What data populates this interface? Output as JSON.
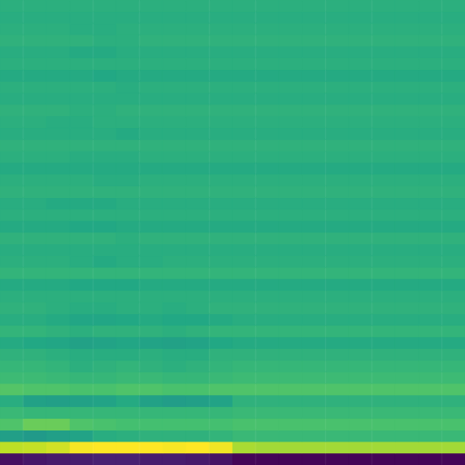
{
  "chart_data": {
    "type": "heatmap",
    "tick_labels": false,
    "zlim": [
      0,
      1
    ],
    "cells": [
      [
        0.63,
        0.63,
        0.63,
        0.63,
        0.63,
        0.63,
        0.63,
        0.63,
        0.63,
        0.63,
        0.63,
        0.63,
        0.63,
        0.63,
        0.63,
        0.63,
        0.63,
        0.63,
        0.63,
        0.63
      ],
      [
        0.62,
        0.62,
        0.62,
        0.62,
        0.62,
        0.62,
        0.62,
        0.62,
        0.62,
        0.62,
        0.62,
        0.62,
        0.62,
        0.62,
        0.62,
        0.62,
        0.62,
        0.62,
        0.62,
        0.62
      ],
      [
        0.63,
        0.63,
        0.63,
        0.62,
        0.62,
        0.63,
        0.63,
        0.63,
        0.63,
        0.63,
        0.63,
        0.63,
        0.63,
        0.63,
        0.63,
        0.63,
        0.63,
        0.63,
        0.63,
        0.63
      ],
      [
        0.64,
        0.64,
        0.64,
        0.64,
        0.63,
        0.63,
        0.64,
        0.64,
        0.64,
        0.64,
        0.64,
        0.64,
        0.64,
        0.64,
        0.64,
        0.64,
        0.64,
        0.64,
        0.64,
        0.64
      ],
      [
        0.62,
        0.62,
        0.62,
        0.61,
        0.61,
        0.62,
        0.62,
        0.62,
        0.62,
        0.62,
        0.62,
        0.62,
        0.62,
        0.62,
        0.62,
        0.62,
        0.62,
        0.62,
        0.62,
        0.62
      ],
      [
        0.63,
        0.63,
        0.63,
        0.63,
        0.63,
        0.63,
        0.63,
        0.63,
        0.63,
        0.63,
        0.63,
        0.63,
        0.63,
        0.63,
        0.63,
        0.63,
        0.63,
        0.63,
        0.63,
        0.63
      ],
      [
        0.61,
        0.61,
        0.61,
        0.61,
        0.6,
        0.61,
        0.61,
        0.61,
        0.61,
        0.61,
        0.61,
        0.61,
        0.61,
        0.61,
        0.61,
        0.61,
        0.61,
        0.61,
        0.61,
        0.61
      ],
      [
        0.63,
        0.63,
        0.63,
        0.63,
        0.63,
        0.62,
        0.63,
        0.63,
        0.63,
        0.63,
        0.63,
        0.63,
        0.63,
        0.63,
        0.63,
        0.63,
        0.63,
        0.63,
        0.63,
        0.63
      ],
      [
        0.62,
        0.62,
        0.62,
        0.62,
        0.62,
        0.62,
        0.62,
        0.62,
        0.62,
        0.62,
        0.62,
        0.62,
        0.62,
        0.62,
        0.62,
        0.62,
        0.62,
        0.62,
        0.62,
        0.62
      ],
      [
        0.64,
        0.64,
        0.64,
        0.63,
        0.63,
        0.64,
        0.64,
        0.64,
        0.64,
        0.64,
        0.64,
        0.64,
        0.64,
        0.64,
        0.64,
        0.64,
        0.64,
        0.64,
        0.64,
        0.64
      ],
      [
        0.63,
        0.63,
        0.62,
        0.62,
        0.63,
        0.63,
        0.63,
        0.63,
        0.63,
        0.63,
        0.63,
        0.63,
        0.63,
        0.63,
        0.63,
        0.63,
        0.63,
        0.63,
        0.63,
        0.63
      ],
      [
        0.62,
        0.62,
        0.62,
        0.62,
        0.62,
        0.61,
        0.62,
        0.62,
        0.62,
        0.62,
        0.62,
        0.62,
        0.62,
        0.62,
        0.62,
        0.62,
        0.62,
        0.62,
        0.62,
        0.62
      ],
      [
        0.64,
        0.64,
        0.64,
        0.64,
        0.64,
        0.64,
        0.64,
        0.64,
        0.64,
        0.64,
        0.64,
        0.64,
        0.64,
        0.64,
        0.64,
        0.64,
        0.64,
        0.64,
        0.64,
        0.64
      ],
      [
        0.63,
        0.63,
        0.63,
        0.62,
        0.62,
        0.62,
        0.63,
        0.63,
        0.63,
        0.63,
        0.63,
        0.63,
        0.63,
        0.63,
        0.63,
        0.63,
        0.63,
        0.63,
        0.63,
        0.63
      ],
      [
        0.61,
        0.61,
        0.61,
        0.61,
        0.61,
        0.61,
        0.61,
        0.61,
        0.61,
        0.61,
        0.61,
        0.61,
        0.61,
        0.61,
        0.61,
        0.61,
        0.61,
        0.61,
        0.61,
        0.61
      ],
      [
        0.63,
        0.63,
        0.63,
        0.63,
        0.62,
        0.62,
        0.63,
        0.63,
        0.63,
        0.63,
        0.63,
        0.63,
        0.63,
        0.63,
        0.63,
        0.63,
        0.63,
        0.63,
        0.63,
        0.63
      ],
      [
        0.64,
        0.64,
        0.64,
        0.64,
        0.64,
        0.64,
        0.64,
        0.64,
        0.64,
        0.64,
        0.64,
        0.64,
        0.64,
        0.64,
        0.64,
        0.64,
        0.64,
        0.64,
        0.64,
        0.64
      ],
      [
        0.62,
        0.62,
        0.61,
        0.61,
        0.61,
        0.62,
        0.62,
        0.62,
        0.62,
        0.62,
        0.62,
        0.62,
        0.62,
        0.62,
        0.62,
        0.62,
        0.62,
        0.62,
        0.62,
        0.62
      ],
      [
        0.63,
        0.63,
        0.63,
        0.63,
        0.63,
        0.63,
        0.63,
        0.63,
        0.63,
        0.63,
        0.63,
        0.63,
        0.63,
        0.63,
        0.63,
        0.63,
        0.63,
        0.63,
        0.63,
        0.63
      ],
      [
        0.61,
        0.61,
        0.61,
        0.6,
        0.6,
        0.61,
        0.61,
        0.61,
        0.61,
        0.61,
        0.61,
        0.61,
        0.61,
        0.61,
        0.61,
        0.61,
        0.61,
        0.61,
        0.61,
        0.61
      ],
      [
        0.64,
        0.64,
        0.64,
        0.64,
        0.64,
        0.63,
        0.64,
        0.64,
        0.64,
        0.64,
        0.64,
        0.64,
        0.64,
        0.64,
        0.64,
        0.64,
        0.64,
        0.64,
        0.64,
        0.64
      ],
      [
        0.62,
        0.62,
        0.62,
        0.62,
        0.62,
        0.62,
        0.62,
        0.62,
        0.62,
        0.62,
        0.62,
        0.62,
        0.62,
        0.62,
        0.62,
        0.62,
        0.62,
        0.62,
        0.62,
        0.62
      ],
      [
        0.63,
        0.63,
        0.63,
        0.62,
        0.61,
        0.62,
        0.62,
        0.63,
        0.63,
        0.63,
        0.63,
        0.63,
        0.63,
        0.63,
        0.63,
        0.63,
        0.63,
        0.63,
        0.63,
        0.63
      ],
      [
        0.65,
        0.65,
        0.65,
        0.65,
        0.65,
        0.65,
        0.65,
        0.65,
        0.65,
        0.65,
        0.65,
        0.65,
        0.65,
        0.65,
        0.65,
        0.65,
        0.65,
        0.65,
        0.65,
        0.65
      ],
      [
        0.61,
        0.61,
        0.61,
        0.6,
        0.6,
        0.6,
        0.61,
        0.61,
        0.61,
        0.61,
        0.61,
        0.61,
        0.61,
        0.61,
        0.61,
        0.61,
        0.61,
        0.61,
        0.61,
        0.61
      ],
      [
        0.63,
        0.63,
        0.63,
        0.63,
        0.63,
        0.63,
        0.63,
        0.63,
        0.63,
        0.63,
        0.63,
        0.63,
        0.63,
        0.63,
        0.63,
        0.63,
        0.63,
        0.63,
        0.63,
        0.63
      ],
      [
        0.64,
        0.64,
        0.63,
        0.62,
        0.62,
        0.63,
        0.63,
        0.62,
        0.63,
        0.64,
        0.64,
        0.64,
        0.64,
        0.64,
        0.64,
        0.64,
        0.64,
        0.64,
        0.64,
        0.64
      ],
      [
        0.62,
        0.62,
        0.61,
        0.59,
        0.59,
        0.6,
        0.61,
        0.6,
        0.6,
        0.61,
        0.62,
        0.62,
        0.62,
        0.62,
        0.62,
        0.62,
        0.62,
        0.62,
        0.62,
        0.62
      ],
      [
        0.65,
        0.65,
        0.64,
        0.63,
        0.64,
        0.64,
        0.64,
        0.63,
        0.64,
        0.65,
        0.65,
        0.65,
        0.65,
        0.65,
        0.65,
        0.65,
        0.65,
        0.65,
        0.65,
        0.65
      ],
      [
        0.61,
        0.6,
        0.59,
        0.57,
        0.58,
        0.59,
        0.58,
        0.57,
        0.58,
        0.6,
        0.61,
        0.61,
        0.61,
        0.61,
        0.61,
        0.61,
        0.61,
        0.61,
        0.61,
        0.61
      ],
      [
        0.64,
        0.64,
        0.63,
        0.62,
        0.62,
        0.62,
        0.63,
        0.62,
        0.62,
        0.64,
        0.64,
        0.64,
        0.64,
        0.64,
        0.64,
        0.64,
        0.64,
        0.64,
        0.64,
        0.64
      ],
      [
        0.66,
        0.66,
        0.65,
        0.63,
        0.64,
        0.65,
        0.64,
        0.63,
        0.64,
        0.65,
        0.66,
        0.66,
        0.66,
        0.66,
        0.66,
        0.66,
        0.66,
        0.66,
        0.66,
        0.66
      ],
      [
        0.68,
        0.68,
        0.67,
        0.66,
        0.66,
        0.67,
        0.67,
        0.66,
        0.66,
        0.67,
        0.68,
        0.68,
        0.68,
        0.68,
        0.68,
        0.68,
        0.68,
        0.68,
        0.68,
        0.68
      ],
      [
        0.73,
        0.72,
        0.72,
        0.71,
        0.71,
        0.72,
        0.72,
        0.71,
        0.71,
        0.72,
        0.72,
        0.72,
        0.72,
        0.72,
        0.72,
        0.72,
        0.72,
        0.72,
        0.72,
        0.72
      ],
      [
        0.62,
        0.57,
        0.56,
        0.57,
        0.58,
        0.61,
        0.57,
        0.55,
        0.56,
        0.58,
        0.64,
        0.64,
        0.64,
        0.64,
        0.64,
        0.64,
        0.64,
        0.64,
        0.64,
        0.64
      ],
      [
        0.67,
        0.66,
        0.66,
        0.66,
        0.66,
        0.66,
        0.66,
        0.66,
        0.66,
        0.66,
        0.67,
        0.67,
        0.67,
        0.67,
        0.67,
        0.67,
        0.67,
        0.67,
        0.67,
        0.67
      ],
      [
        0.72,
        0.77,
        0.77,
        0.72,
        0.71,
        0.7,
        0.7,
        0.7,
        0.7,
        0.7,
        0.71,
        0.71,
        0.71,
        0.71,
        0.71,
        0.71,
        0.71,
        0.71,
        0.71,
        0.71
      ],
      [
        0.56,
        0.54,
        0.56,
        0.58,
        0.62,
        0.63,
        0.64,
        0.64,
        0.64,
        0.65,
        0.67,
        0.67,
        0.67,
        0.67,
        0.67,
        0.67,
        0.67,
        0.67,
        0.67,
        0.67
      ],
      [
        0.9,
        0.91,
        0.93,
        0.99,
        1.0,
        1.0,
        1.0,
        0.99,
        1.0,
        0.98,
        0.87,
        0.86,
        0.86,
        0.86,
        0.86,
        0.86,
        0.86,
        0.86,
        0.86,
        0.86
      ],
      [
        0.04,
        0.06,
        0.07,
        0.08,
        0.09,
        0.09,
        0.08,
        0.08,
        0.07,
        0.05,
        0.01,
        0.01,
        0.01,
        0.01,
        0.01,
        0.01,
        0.01,
        0.01,
        0.01,
        0.01
      ]
    ]
  }
}
